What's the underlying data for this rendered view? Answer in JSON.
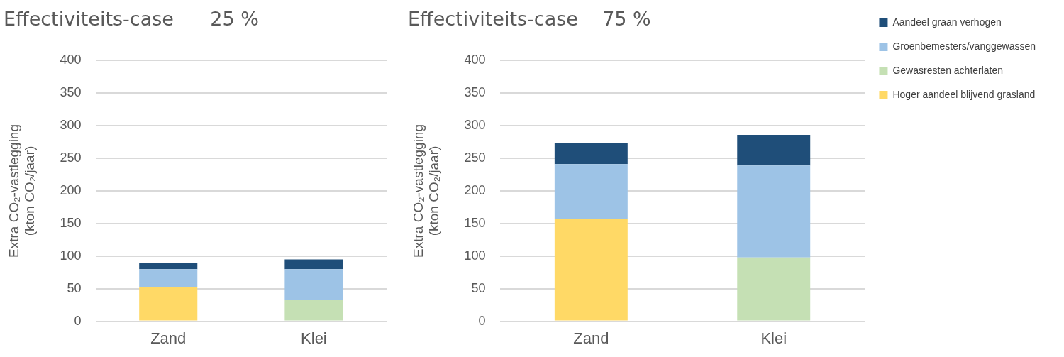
{
  "chart_data": [
    {
      "type": "bar",
      "title": "Effectiviteits-case      25 %",
      "ylabel": "Extra CO₂-vastlegging\n(kton CO₂/jaar)",
      "categories": [
        "Zand",
        "Klei"
      ],
      "stacked": true,
      "ylim": [
        0,
        400
      ],
      "yticks": [
        0,
        50,
        100,
        150,
        200,
        250,
        300,
        350,
        400
      ],
      "grid": "y",
      "legend": false,
      "series": [
        {
          "color": "#ffd966",
          "values": [
            52,
            null
          ]
        },
        {
          "color": "#c5e0b4",
          "values": [
            null,
            33
          ]
        },
        {
          "color": "#9dc3e6",
          "values": [
            28,
            47
          ]
        },
        {
          "color": "#1f4e79",
          "values": [
            10,
            15
          ]
        }
      ]
    },
    {
      "type": "bar",
      "title": "Effectiviteits-case    75 %",
      "ylabel": "Extra CO₂-vastlegging\n(kton CO₂/jaar)",
      "categories": [
        "Zand",
        "Klei"
      ],
      "stacked": true,
      "ylim": [
        0,
        400
      ],
      "yticks": [
        0,
        50,
        100,
        150,
        200,
        250,
        300,
        350,
        400
      ],
      "grid": "y",
      "legend": "right",
      "series": [
        {
          "name": "Hoger aandeel blijvend grasland",
          "color": "#ffd966",
          "values": [
            157,
            null
          ]
        },
        {
          "name": "Gewasresten achterlaten",
          "color": "#c5e0b4",
          "values": [
            null,
            98
          ]
        },
        {
          "name": "Groenbemesters/vanggewassen",
          "color": "#9dc3e6",
          "values": [
            84,
            141
          ]
        },
        {
          "name": "Aandeel graan verhogen",
          "color": "#1f4e79",
          "values": [
            33,
            47
          ]
        }
      ]
    }
  ]
}
